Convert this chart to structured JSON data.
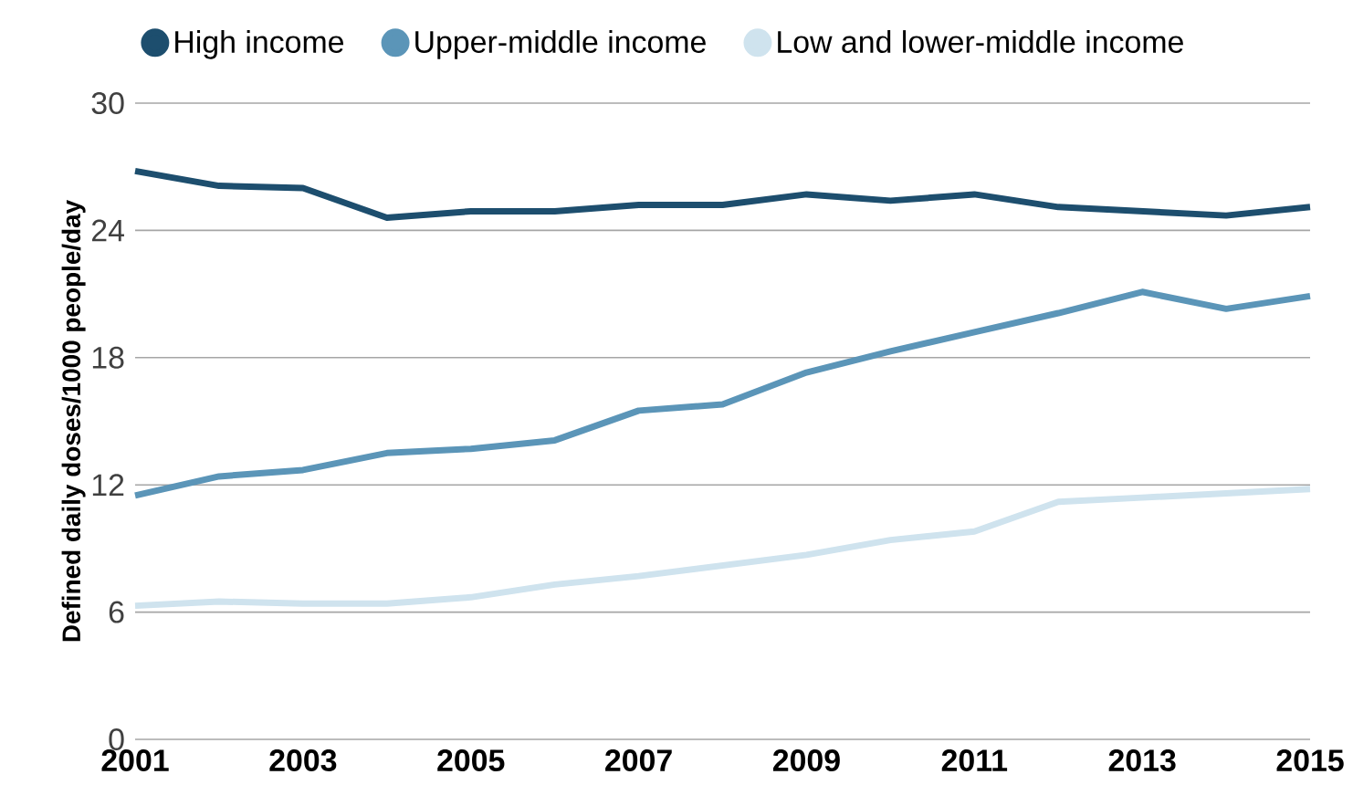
{
  "chart_data": {
    "type": "line",
    "ylabel": "Defined daily doses/1000 people/day",
    "x": [
      2001,
      2002,
      2003,
      2004,
      2005,
      2006,
      2007,
      2008,
      2009,
      2010,
      2011,
      2012,
      2013,
      2014,
      2015
    ],
    "xlim": [
      2001,
      2015
    ],
    "xticks": [
      2001,
      2003,
      2005,
      2007,
      2009,
      2011,
      2013,
      2015
    ],
    "ylim": [
      0,
      30
    ],
    "yticks": [
      0,
      6,
      12,
      18,
      24,
      30
    ],
    "grid": "y",
    "legend": "top left",
    "marker": "none",
    "line_style": "solid",
    "series": [
      {
        "name": "High income",
        "color": "#1d4e6e",
        "values": [
          26.8,
          26.1,
          26.0,
          24.6,
          24.9,
          24.9,
          25.2,
          25.2,
          25.7,
          25.4,
          25.7,
          25.1,
          24.9,
          24.7,
          25.1
        ]
      },
      {
        "name": "Upper-middle income",
        "color": "#5b95b8",
        "values": [
          11.5,
          12.4,
          12.7,
          13.5,
          13.7,
          14.1,
          15.5,
          15.8,
          17.3,
          18.3,
          19.2,
          20.1,
          21.1,
          20.3,
          20.9
        ]
      },
      {
        "name": "Low and lower-middle income",
        "color": "#cfe3ee",
        "values": [
          6.3,
          6.5,
          6.4,
          6.4,
          6.7,
          7.3,
          7.7,
          8.2,
          8.7,
          9.4,
          9.8,
          11.2,
          11.4,
          11.6,
          11.8
        ]
      }
    ]
  }
}
